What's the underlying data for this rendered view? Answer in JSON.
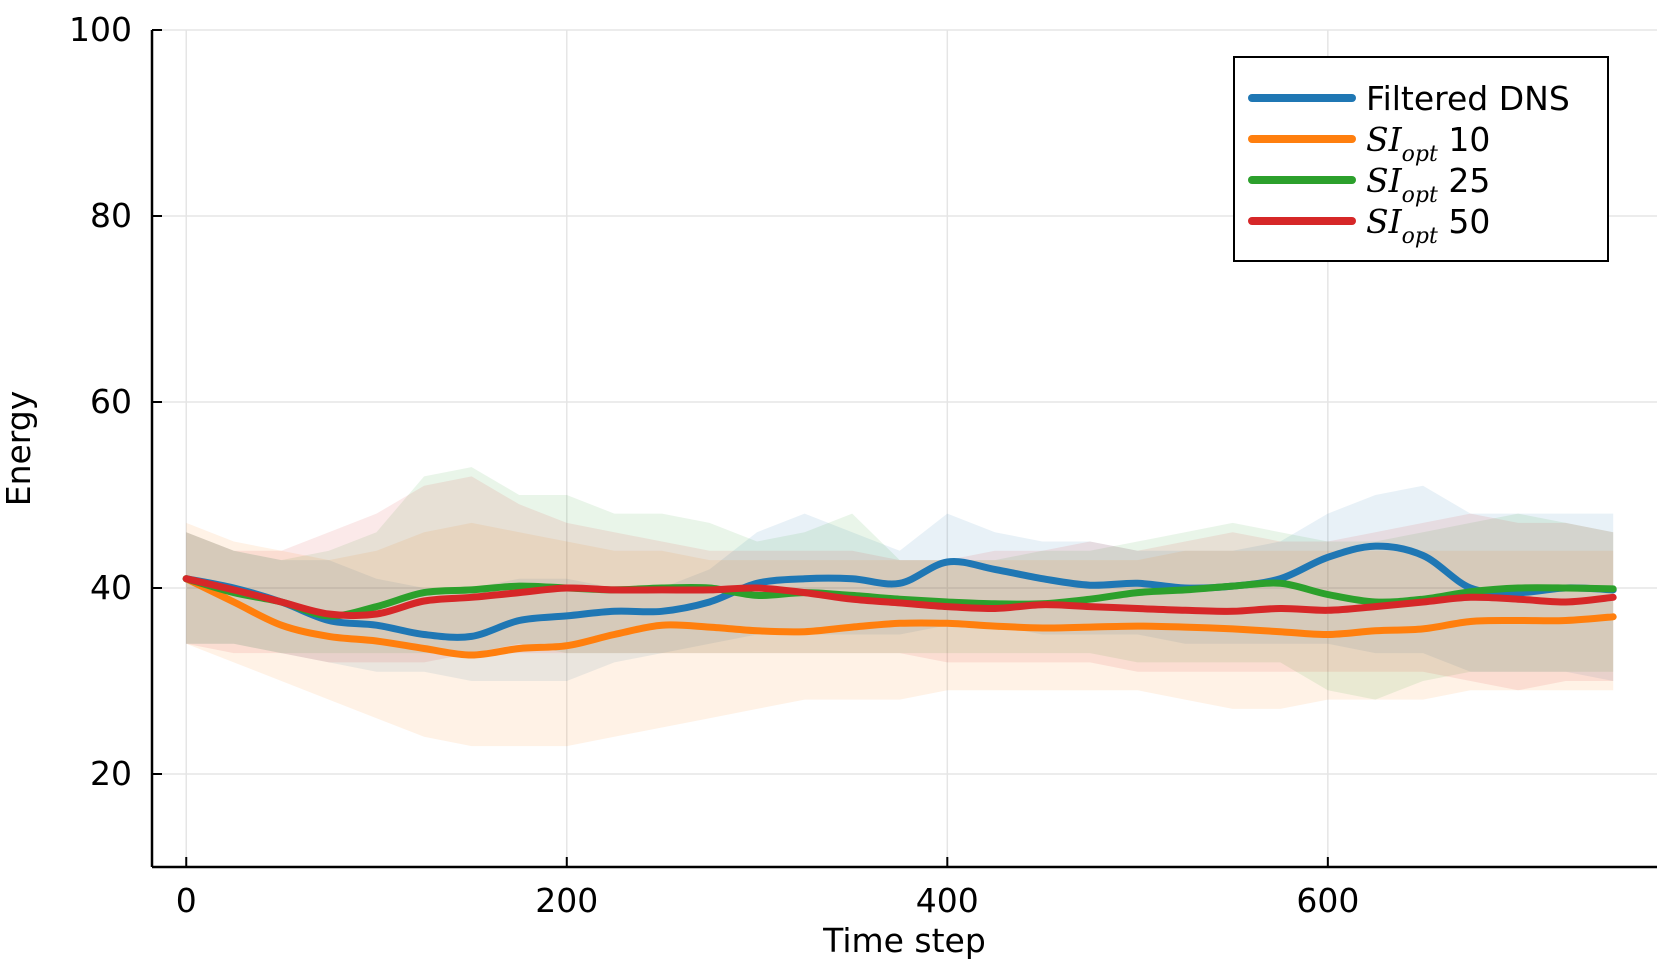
{
  "chart_data": {
    "type": "line",
    "title": "",
    "xlabel": "Time step",
    "ylabel": "Energy",
    "xlim": [
      -18,
      773
    ],
    "ylim": [
      10,
      100
    ],
    "xticks": [
      0,
      200,
      400,
      600
    ],
    "xtick_labels": [
      "0",
      "200",
      "400",
      "600"
    ],
    "yticks": [
      20,
      40,
      60,
      80,
      100
    ],
    "ytick_labels": [
      "20",
      "40",
      "60",
      "80",
      "100"
    ],
    "grid": true,
    "legend_position": "top-right",
    "x": [
      0,
      25,
      50,
      75,
      100,
      125,
      150,
      175,
      200,
      225,
      250,
      275,
      300,
      325,
      350,
      375,
      400,
      425,
      450,
      475,
      500,
      525,
      550,
      575,
      600,
      625,
      650,
      675,
      700,
      725,
      750
    ],
    "series": [
      {
        "name": "Filtered DNS",
        "label_main": "Filtered DNS",
        "label_sub": "",
        "label_suffix": "",
        "color": "#1f77b4",
        "values": [
          41,
          40,
          38.5,
          36.5,
          36,
          35,
          34.8,
          36.5,
          37,
          37.5,
          37.5,
          38.5,
          40.5,
          41,
          41,
          40.5,
          42.8,
          42,
          41,
          40.3,
          40.5,
          40,
          40.2,
          41,
          43.3,
          44.5,
          43.5,
          40,
          39.5,
          40,
          39.8
        ],
        "upper": [
          46,
          44,
          43,
          43,
          41,
          40,
          40,
          41,
          41,
          40,
          40,
          42,
          46,
          48,
          46,
          44,
          48,
          46,
          45,
          45,
          44,
          44,
          44,
          45,
          48,
          50,
          51,
          48,
          48,
          48,
          48
        ],
        "lower": [
          34,
          34,
          33,
          32,
          31,
          31,
          30,
          30,
          30,
          32,
          33,
          34,
          35,
          35,
          35,
          35,
          36,
          36,
          35,
          35,
          35,
          34,
          34,
          34,
          34,
          33,
          33,
          31,
          31,
          31,
          30
        ]
      },
      {
        "name": "SI_opt 10",
        "label_main": "SI",
        "label_sub": "opt",
        "label_suffix": "10",
        "color": "#ff7f0e",
        "values": [
          41,
          38.5,
          36,
          34.8,
          34.3,
          33.5,
          32.8,
          33.5,
          33.8,
          35,
          36,
          35.8,
          35.4,
          35.3,
          35.8,
          36.2,
          36.2,
          35.9,
          35.7,
          35.8,
          35.9,
          35.8,
          35.6,
          35.3,
          35,
          35.4,
          35.6,
          36.4,
          36.5,
          36.5,
          36.9
        ],
        "upper": [
          47,
          45,
          44,
          43,
          44,
          46,
          47,
          46,
          45,
          44,
          44,
          43,
          43,
          43,
          43,
          43,
          43,
          43,
          43,
          43,
          43,
          44,
          44,
          44,
          44,
          44,
          44,
          44,
          44,
          44,
          44
        ],
        "lower": [
          34,
          32,
          30,
          28,
          26,
          24,
          23,
          23,
          23,
          24,
          25,
          26,
          27,
          28,
          28,
          28,
          29,
          29,
          29,
          29,
          29,
          28,
          27,
          27,
          28,
          28,
          28,
          29,
          29,
          29,
          29
        ]
      },
      {
        "name": "SI_opt 25",
        "label_main": "SI",
        "label_sub": "opt",
        "label_suffix": "25",
        "color": "#2ca02c",
        "values": [
          41,
          39.5,
          38.5,
          37,
          38,
          39.5,
          39.8,
          40.2,
          40,
          39.8,
          40,
          40,
          39.2,
          39.5,
          39.2,
          38.8,
          38.5,
          38.3,
          38.3,
          38.8,
          39.5,
          39.8,
          40.2,
          40.5,
          39.3,
          38.5,
          38.8,
          39.6,
          40,
          40,
          39.9
        ],
        "upper": [
          46,
          44,
          43,
          44,
          46,
          52,
          53,
          50,
          50,
          48,
          48,
          47,
          45,
          46,
          48,
          43,
          43,
          43,
          44,
          44,
          45,
          46,
          47,
          46,
          45,
          45,
          46,
          47,
          48,
          47,
          46
        ],
        "lower": [
          34,
          34,
          33,
          33,
          33,
          33,
          33,
          34,
          33,
          33,
          33,
          33,
          33,
          33,
          33,
          33,
          33,
          33,
          33,
          33,
          32,
          32,
          32,
          32,
          29,
          28,
          30,
          31,
          31,
          31,
          31
        ]
      },
      {
        "name": "SI_opt 50",
        "label_main": "SI",
        "label_sub": "opt",
        "label_suffix": "50",
        "color": "#d62728",
        "values": [
          41,
          39.8,
          38.5,
          37.2,
          37.2,
          38.6,
          39,
          39.5,
          40,
          39.8,
          39.8,
          39.8,
          40,
          39.5,
          38.8,
          38.4,
          38,
          37.8,
          38.2,
          38,
          37.8,
          37.6,
          37.5,
          37.8,
          37.6,
          38,
          38.5,
          39,
          38.8,
          38.5,
          39
        ],
        "upper": [
          46,
          44,
          44,
          46,
          48,
          51,
          52,
          49,
          47,
          46,
          45,
          44,
          44,
          44,
          44,
          43,
          43,
          44,
          44,
          45,
          44,
          45,
          46,
          45,
          45,
          46,
          47,
          48,
          47,
          47,
          46
        ],
        "lower": [
          34,
          33,
          33,
          32,
          32,
          32,
          33,
          33,
          33,
          33,
          33,
          33,
          33,
          33,
          33,
          33,
          32,
          32,
          32,
          32,
          31,
          31,
          31,
          31,
          31,
          31,
          31,
          30,
          29,
          30,
          30
        ]
      }
    ]
  }
}
